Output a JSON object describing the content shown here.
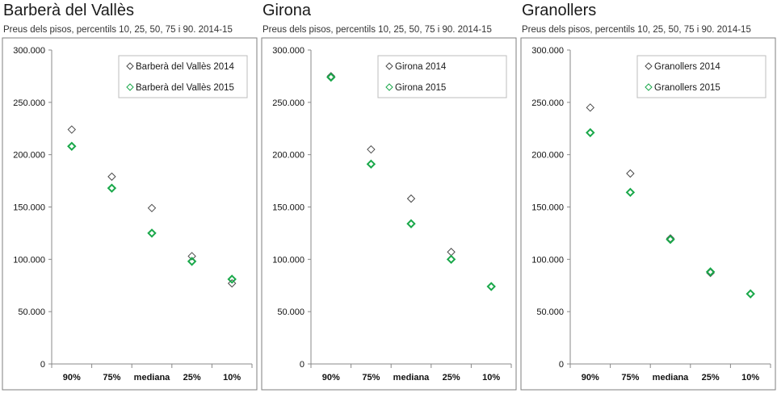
{
  "colors": {
    "series_2014": "#4a4a4a",
    "series_2015": "#1aa84a",
    "axis": "#888888",
    "frame": "#7f7f7f"
  },
  "chart_data": [
    {
      "type": "scatter",
      "title": "Barberà del Vallès",
      "subtitle": "Preus dels pisos, percentils 10, 25, 50, 75 i 90. 2014-15",
      "categories": [
        "90%",
        "75%",
        "mediana",
        "25%",
        "10%"
      ],
      "y_ticks": [
        "300.000",
        "250.000",
        "200.000",
        "150.000",
        "100.000",
        "50.000",
        "0"
      ],
      "ylim": [
        0,
        300000
      ],
      "legend_position": "top-right",
      "grid": false,
      "series": [
        {
          "name": "Barberà del Vallès 2014",
          "values": [
            224000,
            179000,
            149000,
            103000,
            77000
          ]
        },
        {
          "name": "Barberà del Vallès 2015",
          "values": [
            208000,
            168000,
            125000,
            98000,
            81000
          ]
        }
      ]
    },
    {
      "type": "scatter",
      "title": "Girona",
      "subtitle": "Preus dels pisos, percentils 10, 25, 50, 75 i 90. 2014-15",
      "categories": [
        "90%",
        "75%",
        "mediana",
        "25%",
        "10%"
      ],
      "y_ticks": [
        "300.000",
        "250.000",
        "200.000",
        "150.000",
        "100.000",
        "50.000",
        "0"
      ],
      "ylim": [
        0,
        300000
      ],
      "legend_position": "top-right",
      "grid": false,
      "series": [
        {
          "name": "Girona 2014",
          "values": [
            275000,
            205000,
            158000,
            107000,
            74000
          ]
        },
        {
          "name": "Girona 2015",
          "values": [
            274000,
            191000,
            134000,
            100000,
            74000
          ]
        }
      ]
    },
    {
      "type": "scatter",
      "title": "Granollers",
      "subtitle": "Preus dels pisos, percentils 10, 25, 50, 75 i 90. 2014-15",
      "categories": [
        "90%",
        "75%",
        "mediana",
        "25%",
        "10%"
      ],
      "y_ticks": [
        "300.000",
        "250.000",
        "200.000",
        "150.000",
        "100.000",
        "50.000",
        "0"
      ],
      "ylim": [
        0,
        300000
      ],
      "legend_position": "top-right",
      "grid": false,
      "series": [
        {
          "name": "Granollers 2014",
          "values": [
            245000,
            182000,
            120000,
            87000,
            67000
          ]
        },
        {
          "name": "Granollers 2015",
          "values": [
            221000,
            164000,
            119000,
            88000,
            67000
          ]
        }
      ]
    }
  ]
}
